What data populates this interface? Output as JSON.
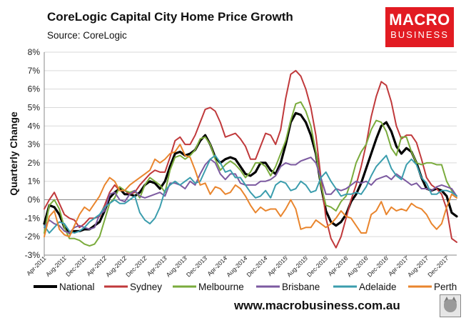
{
  "title": "CoreLogic Capital City Home Price Growth",
  "source": "Source: CoreLogic",
  "logo": {
    "line1": "MACRO",
    "line2": "BUSINESS",
    "color": "#e21b22"
  },
  "footer_url": "www.macrobusiness.com.au",
  "chart_data": {
    "type": "line",
    "title": "CoreLogic Capital City Home Price Growth",
    "ylabel": "Quarterly Change",
    "xlabel": "",
    "ylim": [
      -3,
      8
    ],
    "yticks": [
      "-3%",
      "-2%",
      "-1%",
      "0%",
      "1%",
      "2%",
      "3%",
      "4%",
      "5%",
      "6%",
      "7%",
      "8%"
    ],
    "x_start": "Apr-2011",
    "x_step_months": 1,
    "xtick_labels": [
      "Apr-2011",
      "Aug-2011",
      "Dec-2011",
      "Apr-2012",
      "Aug-2012",
      "Dec-2012",
      "Apr-2013",
      "Aug-2013",
      "Dec-2013",
      "Apr-2014",
      "Aug-2014",
      "Dec-2014",
      "Apr-2015",
      "Aug-2015",
      "Dec-2015",
      "Apr-2016",
      "Aug-2016",
      "Dec-2016",
      "Apr-2017",
      "Aug-2017",
      "Dec-2017"
    ],
    "grid": true,
    "legend_position": "bottom",
    "series": [
      {
        "name": "National",
        "color": "#000000",
        "width": 3.2,
        "values": [
          -1.3,
          -0.3,
          -0.4,
          -0.8,
          -1.5,
          -1.8,
          -1.7,
          -1.7,
          -1.6,
          -1.6,
          -1.4,
          -1.2,
          -0.6,
          0.1,
          0.4,
          0.6,
          0.3,
          0.3,
          0.2,
          0.4,
          0.8,
          1.0,
          0.9,
          0.6,
          1.0,
          1.8,
          2.5,
          2.6,
          2.4,
          2.5,
          2.7,
          3.2,
          3.5,
          3.0,
          2.3,
          2.0,
          2.2,
          2.3,
          2.2,
          1.8,
          1.4,
          1.3,
          1.5,
          2.0,
          2.0,
          1.6,
          1.4,
          2.0,
          3.0,
          4.2,
          4.7,
          4.6,
          4.2,
          3.5,
          2.5,
          0.8,
          -0.6,
          -1.2,
          -1.4,
          -1.2,
          -0.8,
          -0.1,
          0.3,
          0.9,
          1.7,
          2.5,
          3.3,
          4.0,
          4.2,
          3.7,
          2.9,
          2.5,
          2.8,
          2.6,
          2.0,
          1.2,
          0.6,
          0.5,
          0.6,
          0.5,
          0.2,
          -0.7,
          -0.9
        ]
      },
      {
        "name": "Sydney",
        "color": "#c0393b",
        "width": 2,
        "values": [
          -0.5,
          0.0,
          0.4,
          -0.2,
          -0.8,
          -1.0,
          -1.1,
          -1.5,
          -1.3,
          -1.0,
          -1.0,
          -0.9,
          -0.3,
          0.4,
          0.8,
          0.5,
          0.5,
          0.3,
          0.4,
          0.8,
          1.1,
          1.4,
          1.6,
          1.5,
          1.5,
          2.3,
          3.2,
          3.4,
          3.0,
          3.0,
          3.5,
          4.2,
          4.9,
          5.0,
          4.8,
          4.2,
          3.4,
          3.5,
          3.6,
          3.3,
          2.9,
          2.2,
          2.2,
          2.9,
          3.6,
          3.5,
          3.0,
          3.8,
          5.5,
          6.8,
          7.0,
          6.7,
          6.0,
          5.0,
          3.5,
          1.2,
          -1.0,
          -2.1,
          -2.6,
          -2.0,
          -1.0,
          0.0,
          0.8,
          1.8,
          3.0,
          4.5,
          5.6,
          6.4,
          6.2,
          5.3,
          4.0,
          3.3,
          3.5,
          3.5,
          3.1,
          2.2,
          1.2,
          0.8,
          0.6,
          0.3,
          -0.5,
          -2.1,
          -2.3
        ]
      },
      {
        "name": "Melbourne",
        "color": "#7aab3c",
        "width": 2,
        "values": [
          -1.8,
          -0.3,
          0.0,
          -0.5,
          -1.5,
          -2.1,
          -2.1,
          -2.2,
          -2.4,
          -2.5,
          -2.4,
          -2.0,
          -1.1,
          -0.2,
          0.1,
          0.7,
          0.5,
          0.4,
          0.5,
          0.1,
          0.8,
          1.2,
          1.0,
          0.8,
          0.4,
          1.6,
          2.3,
          2.4,
          2.2,
          2.4,
          2.7,
          3.3,
          3.4,
          3.0,
          2.2,
          1.6,
          1.9,
          2.1,
          1.9,
          1.6,
          1.2,
          1.5,
          2.0,
          2.0,
          1.8,
          1.3,
          1.8,
          2.5,
          3.2,
          4.3,
          5.2,
          5.3,
          4.8,
          4.0,
          2.6,
          0.8,
          -0.3,
          -0.4,
          -0.6,
          -0.1,
          0.2,
          1.0,
          2.0,
          2.6,
          3.0,
          3.8,
          4.3,
          4.2,
          3.7,
          2.8,
          2.4,
          3.4,
          3.4,
          2.6,
          2.0,
          1.9,
          2.0,
          2.0,
          1.9,
          1.9,
          1.0,
          0.5,
          0.2
        ]
      },
      {
        "name": "Brisbane",
        "color": "#7c5aa0",
        "width": 2,
        "values": [
          -1.5,
          -1.1,
          -1.3,
          -1.4,
          -1.7,
          -1.8,
          -1.5,
          -1.4,
          -1.5,
          -1.6,
          -1.5,
          -0.8,
          -0.6,
          0.3,
          0.4,
          0.0,
          -0.1,
          0.3,
          0.5,
          0.2,
          0.1,
          0.2,
          0.3,
          0.4,
          0.2,
          0.9,
          0.9,
          0.8,
          0.6,
          1.0,
          0.8,
          1.4,
          1.9,
          2.2,
          2.0,
          1.4,
          1.1,
          1.4,
          1.4,
          0.9,
          0.8,
          0.8,
          0.8,
          1.0,
          1.0,
          1.1,
          1.3,
          1.8,
          2.0,
          1.9,
          1.9,
          2.1,
          2.2,
          2.3,
          2.0,
          1.2,
          0.3,
          0.3,
          0.6,
          0.5,
          0.6,
          0.8,
          1.0,
          0.9,
          1.0,
          0.8,
          1.1,
          1.2,
          1.3,
          1.1,
          1.4,
          1.2,
          1.0,
          0.8,
          0.9,
          0.6,
          0.6,
          0.5,
          0.7,
          0.8,
          0.7,
          0.6,
          0.2
        ]
      },
      {
        "name": "Adelaide",
        "color": "#3b9dad",
        "width": 2,
        "values": [
          -1.4,
          -1.8,
          -1.5,
          -1.2,
          -1.3,
          -1.7,
          -1.8,
          -1.7,
          -1.5,
          -1.2,
          -1.0,
          -0.8,
          -0.4,
          -0.2,
          0.0,
          -0.2,
          -0.2,
          0.0,
          0.2,
          -0.7,
          -1.1,
          -1.3,
          -1.0,
          -0.4,
          0.5,
          0.8,
          1.0,
          0.8,
          1.0,
          1.2,
          0.9,
          1.0,
          1.6,
          2.2,
          2.4,
          2.0,
          1.5,
          1.6,
          1.2,
          1.2,
          0.8,
          0.4,
          0.1,
          0.2,
          0.5,
          0.1,
          0.8,
          1.0,
          0.9,
          0.5,
          0.6,
          1.0,
          0.8,
          0.4,
          0.5,
          1.2,
          1.5,
          1.0,
          0.6,
          0.2,
          0.3,
          0.3,
          0.4,
          0.3,
          0.7,
          1.3,
          1.8,
          2.1,
          2.4,
          1.7,
          1.3,
          1.1,
          1.9,
          2.2,
          1.9,
          1.2,
          0.9,
          0.3,
          0.3,
          0.5,
          0.5,
          0.4,
          0.2
        ]
      },
      {
        "name": "Perth",
        "color": "#e9852d",
        "width": 2,
        "values": [
          -2.0,
          -0.9,
          -0.6,
          -1.6,
          -1.9,
          -2.0,
          -1.4,
          -0.8,
          -0.4,
          -0.6,
          -0.2,
          0.2,
          0.8,
          1.2,
          1.0,
          0.5,
          0.5,
          0.8,
          1.0,
          1.2,
          1.4,
          1.6,
          2.2,
          2.0,
          2.2,
          2.5,
          2.6,
          3.0,
          2.4,
          2.3,
          1.6,
          0.8,
          0.9,
          0.3,
          0.7,
          0.6,
          0.3,
          0.4,
          0.8,
          0.6,
          0.2,
          -0.3,
          -0.7,
          -0.4,
          -0.6,
          -0.5,
          -0.5,
          -0.9,
          -0.5,
          0.0,
          -0.5,
          -1.6,
          -1.5,
          -1.5,
          -1.1,
          -1.3,
          -1.5,
          -1.3,
          -1.0,
          -0.6,
          -0.9,
          -1.0,
          -1.4,
          -1.8,
          -1.8,
          -0.8,
          -0.6,
          -0.1,
          -0.8,
          -0.4,
          -0.6,
          -0.5,
          -0.6,
          -0.2,
          -0.4,
          -0.5,
          -0.8,
          -1.3,
          -1.6,
          -1.3,
          -0.4,
          0.3,
          0.1
        ]
      }
    ]
  }
}
